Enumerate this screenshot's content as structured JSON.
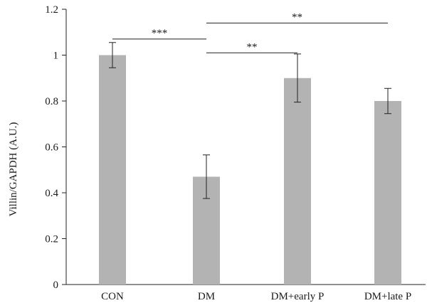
{
  "chart_data": {
    "type": "bar",
    "categories": [
      "CON",
      "DM",
      "DM+early P",
      "DM+late P"
    ],
    "values": [
      1.0,
      0.47,
      0.9,
      0.8
    ],
    "error": [
      0.055,
      0.095,
      0.105,
      0.055
    ],
    "title": "",
    "xlabel": "",
    "ylabel": "Villin/GAPDH (A.U.)",
    "ylim": [
      0,
      1.2
    ],
    "yticks": [
      0,
      0.2,
      0.4,
      0.6,
      0.8,
      1,
      1.2
    ],
    "ytick_labels": [
      "0",
      "0.2",
      "0.4",
      "0.6",
      "0.8",
      "1",
      "1.2"
    ],
    "grid": false,
    "bar_color": "#b3b3b3",
    "significance": [
      {
        "from": 0,
        "to": 1,
        "y": 1.07,
        "label": "***"
      },
      {
        "from": 1,
        "to": 2,
        "y": 1.01,
        "label": "**"
      },
      {
        "from": 1,
        "to": 3,
        "y": 1.14,
        "label": "**"
      }
    ]
  }
}
